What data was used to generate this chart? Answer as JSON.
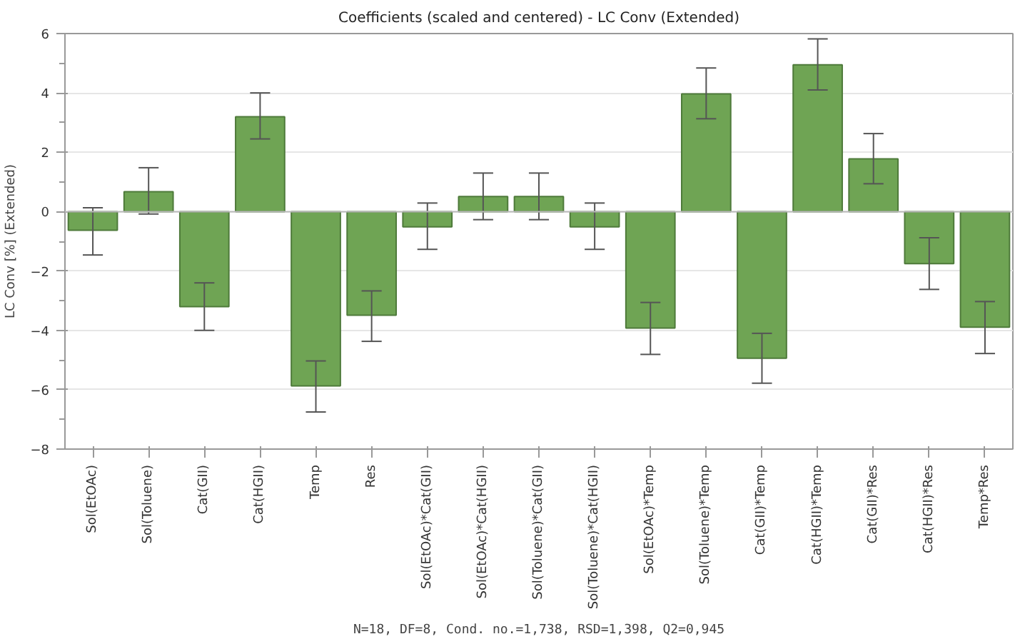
{
  "chart_data": {
    "type": "bar",
    "title": "Coefficients (scaled and centered) - LC Conv (Extended)",
    "ylabel": "LC Conv [%] (Extended)",
    "categories": [
      "Sol(EtOAc)",
      "Sol(Toluene)",
      "Cat(GII)",
      "Cat(HGII)",
      "Temp",
      "Res",
      "Sol(EtOAc)*Cat(GII)",
      "Sol(EtOAc)*Cat(HGII)",
      "Sol(Toluene)*Cat(GII)",
      "Sol(Toluene)*Cat(HGII)",
      "Sol(EtOAc)*Temp",
      "Sol(Toluene)*Temp",
      "Cat(GII)*Temp",
      "Cat(HGII)*Temp",
      "Cat(GII)*Res",
      "Cat(HGII)*Res",
      "Temp*Res"
    ],
    "values": [
      -0.63,
      0.67,
      -3.2,
      3.2,
      -5.87,
      -3.49,
      -0.51,
      0.51,
      0.51,
      -0.51,
      -3.92,
      3.97,
      -4.94,
      4.95,
      1.78,
      -1.75,
      -3.89
    ],
    "errors": [
      [
        -1.46,
        0.13
      ],
      [
        -0.08,
        1.48
      ],
      [
        -4.0,
        -2.4
      ],
      [
        2.45,
        4.0
      ],
      [
        -6.75,
        -5.03
      ],
      [
        -4.37,
        -2.67
      ],
      [
        -1.27,
        0.29
      ],
      [
        -0.27,
        1.3
      ],
      [
        -0.27,
        1.3
      ],
      [
        -1.27,
        0.29
      ],
      [
        -4.81,
        -3.06
      ],
      [
        3.13,
        4.84
      ],
      [
        -5.78,
        -4.1
      ],
      [
        4.1,
        5.82
      ],
      [
        0.94,
        2.63
      ],
      [
        -2.62,
        -0.88
      ],
      [
        -4.78,
        -3.03
      ]
    ],
    "color": "#6fa454",
    "ylim": [
      -8,
      6
    ],
    "yticks": [
      -8,
      -6,
      -4,
      -2,
      0,
      2,
      4,
      6
    ],
    "grid": "y",
    "annotations": [
      "N=18, DF=8, Cond. no.=1,738, RSD=1,398, Q2=0,945"
    ]
  }
}
